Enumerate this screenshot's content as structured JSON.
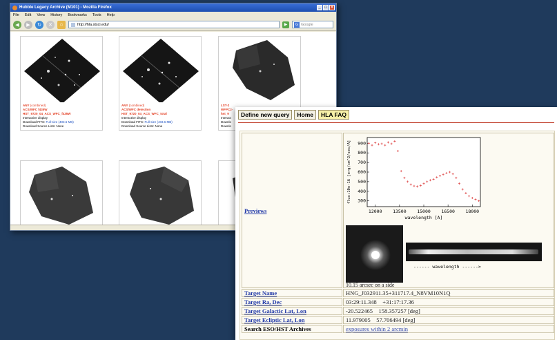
{
  "firefox": {
    "title": "Hubble Legacy Archive (M101) - Mozilla Firefox",
    "menu": [
      "File",
      "Edit",
      "View",
      "History",
      "Bookmarks",
      "Tools",
      "Help"
    ],
    "url": "http://hla.stsci.edu/",
    "search_placeholder": "Google",
    "cards": [
      {
        "line1": "ANY",
        "line1_suffix": "(combined)",
        "line2": "ACS/WFC f435W",
        "line3": "HST_9720_04_ACS_WFC_f435W",
        "line4": "Interactive display",
        "line5_prefix": "Download FITS:",
        "line5_link": "Full-size (403.6 MB)",
        "line6": "Download Source Lists: None"
      },
      {
        "line1": "ANY",
        "line1_suffix": "(combined)",
        "line2": "ACS/WFC detection",
        "line3": "HST_9720_04_ACS_WFC_total",
        "line4": "Interactive display",
        "line5_prefix": "Download FITS:",
        "line5_link": "Full-size (403.6 MB)",
        "line6": "Download Source Lists: None"
      },
      {
        "line1": "LST-2",
        "line1_suffix": "",
        "line2": "WFPC2-",
        "line3": "hst_9",
        "line4": "Interact",
        "line5_prefix": "Downlo",
        "line5_link": "",
        "line6": "Downlo"
      }
    ]
  },
  "hla": {
    "tabs": [
      "Define new query",
      "Home",
      "HLA FAQ"
    ],
    "rows": [
      {
        "label": "Previews",
        "value": ""
      },
      {
        "label": "Target Name",
        "value": "HNG_J032911.35+311717.4_N8VM10N1Q"
      },
      {
        "label": "Target Ra, Dec",
        "value": "03:29:11.348    +31:17:17.36"
      },
      {
        "label": "Target Galactic Lat, Lon",
        "value": "-20.522465    158.357257 [deg]"
      },
      {
        "label": "Target Ecliptic Lat, Lon",
        "value": "11.979005    57.706494 [deg]"
      },
      {
        "label": "Search ESO/HST Archives",
        "value": "exposures within 2 arcmin"
      }
    ],
    "wavelength_label": "------ wavelength ------>",
    "arcsec_label": "10.15 arcsec on a side"
  },
  "chart_data": {
    "type": "scatter",
    "xlabel": "wavelength [A]",
    "ylabel": "flux:10e-16 [erg/cm^2/sec/A]",
    "xlim": [
      11500,
      18500
    ],
    "ylim": [
      240,
      960
    ],
    "xticks": [
      12000,
      13500,
      15000,
      16500,
      18000
    ],
    "yticks": [
      300,
      400,
      500,
      600,
      700,
      800,
      900
    ],
    "color": "#e05050",
    "x": [
      11600,
      11800,
      12000,
      12200,
      12400,
      12600,
      12800,
      13000,
      13200,
      13400,
      13600,
      13800,
      14000,
      14200,
      14400,
      14600,
      14800,
      15000,
      15200,
      15400,
      15600,
      15800,
      16000,
      16200,
      16400,
      16600,
      16800,
      17000,
      17200,
      17400,
      17600,
      17800,
      18000,
      18200,
      18400
    ],
    "y": [
      900,
      880,
      905,
      890,
      895,
      880,
      910,
      895,
      920,
      820,
      610,
      540,
      500,
      470,
      455,
      450,
      460,
      480,
      500,
      515,
      525,
      545,
      560,
      575,
      590,
      600,
      580,
      540,
      480,
      420,
      380,
      350,
      330,
      315,
      300
    ]
  }
}
